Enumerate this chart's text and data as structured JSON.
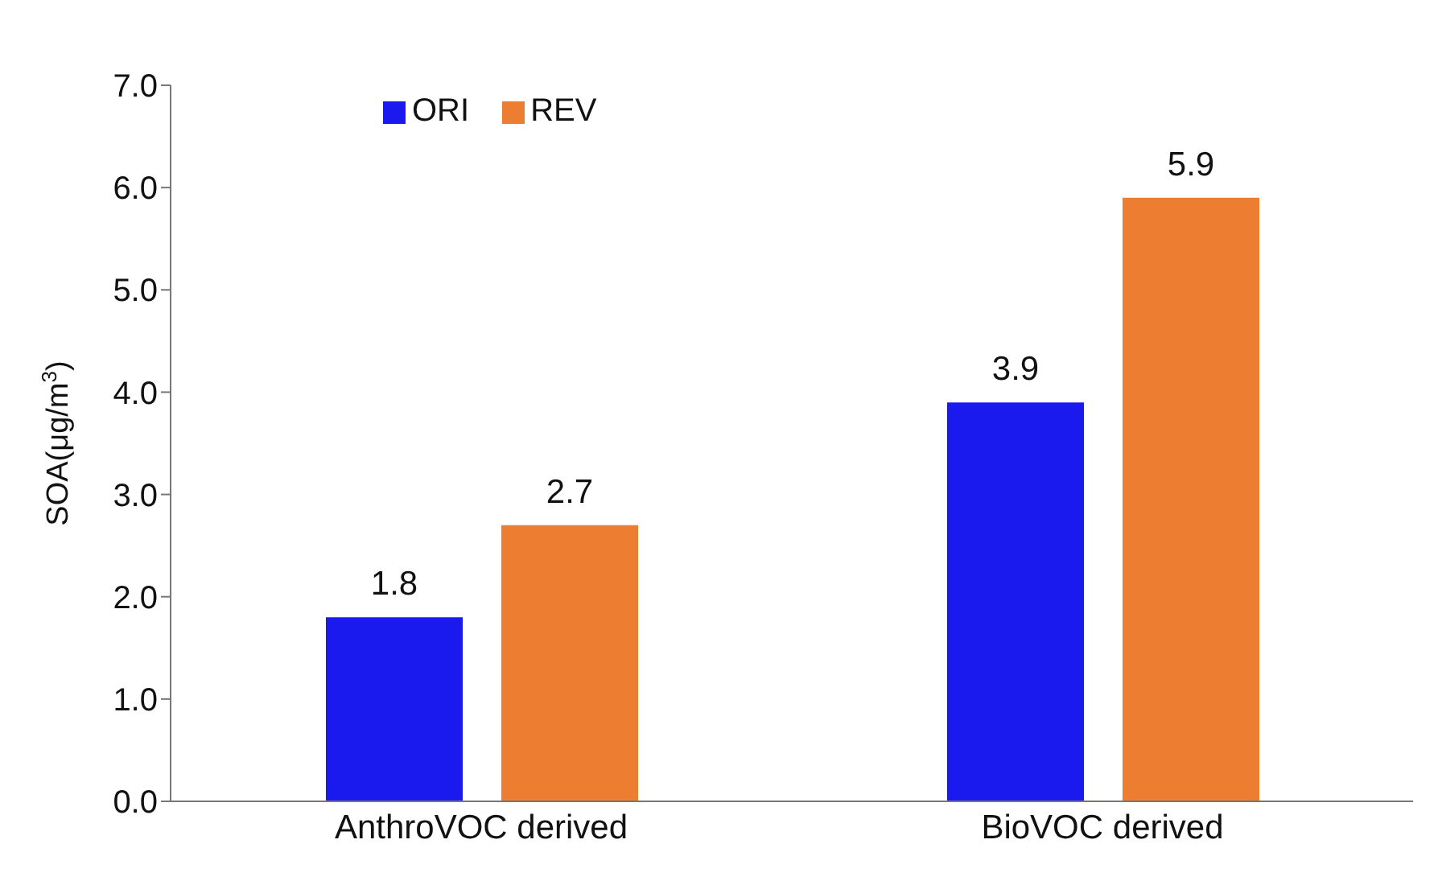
{
  "chart_data": {
    "type": "bar",
    "ylabel": "SOA(μg/m$^{3}$)",
    "categories": [
      "AnthroVOC derived",
      "BioVOC derived"
    ],
    "series": [
      {
        "name": "ORI",
        "color": "#1a1aee",
        "values": [
          1.8,
          3.9
        ]
      },
      {
        "name": "REV",
        "color": "#ed7d31",
        "values": [
          2.7,
          5.9
        ]
      }
    ],
    "ylim": [
      0,
      7
    ],
    "yticks": [
      {
        "value": 0,
        "label": "0.0"
      },
      {
        "value": 1,
        "label": "1.0"
      },
      {
        "value": 2,
        "label": "2.0"
      },
      {
        "value": 3,
        "label": "3.0"
      },
      {
        "value": 4,
        "label": "4.0"
      },
      {
        "value": 5,
        "label": "5.0"
      },
      {
        "value": 6,
        "label": "6.0"
      },
      {
        "value": 7,
        "label": "7.0"
      }
    ],
    "data_labels": true,
    "legend": "top left",
    "grid": false
  }
}
